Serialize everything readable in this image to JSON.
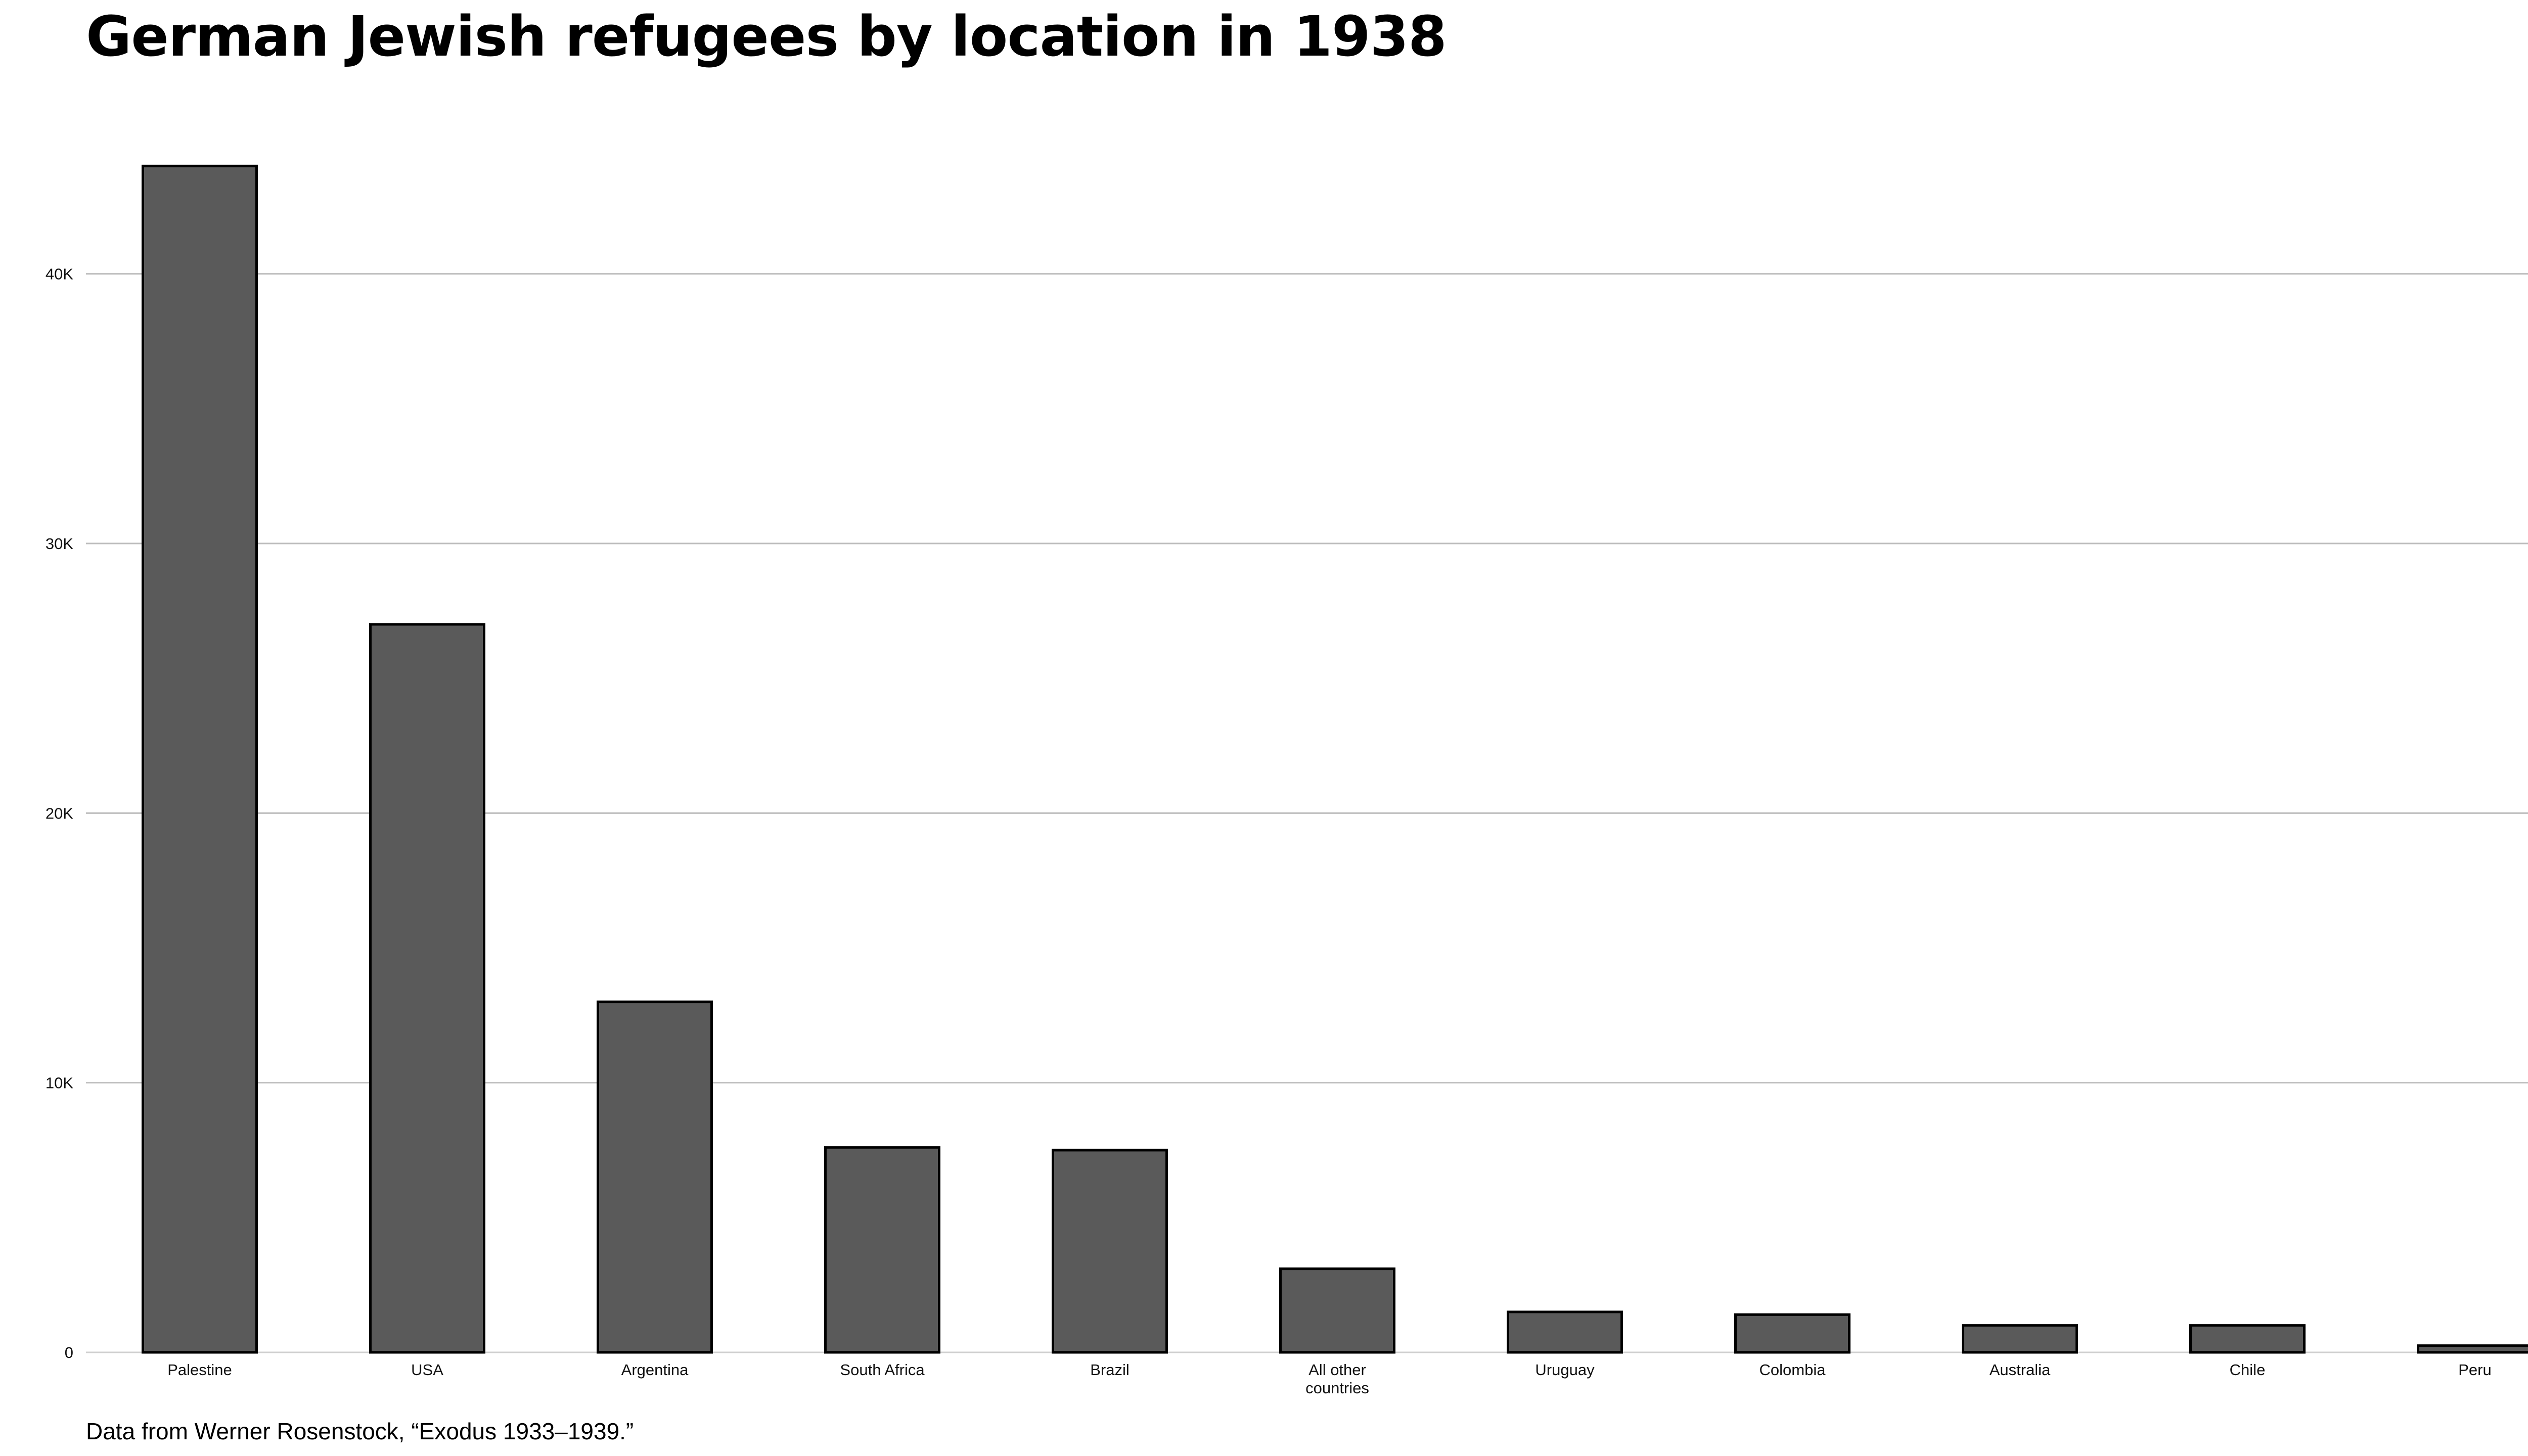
{
  "chart_data": {
    "type": "bar",
    "title": "German Jewish refugees by location in 1938",
    "xlabel": "",
    "ylabel": "",
    "categories": [
      "Palestine",
      "USA",
      "Argentina",
      "South Africa",
      "Brazil",
      "All other countries",
      "Uruguay",
      "Colombia",
      "Australia",
      "Chile",
      "Peru"
    ],
    "values": [
      44000,
      27000,
      13000,
      7600,
      7500,
      3100,
      1500,
      1400,
      1000,
      1000,
      250
    ],
    "ylim": [
      0,
      46500
    ],
    "yticks": [
      0,
      10000,
      20000,
      30000,
      40000
    ],
    "ytick_labels": [
      "0",
      "10K",
      "20K",
      "30K",
      "40K"
    ],
    "grid": "horizontal",
    "legend": "none",
    "bar_color": "#5a5a5a",
    "source_note": "Data from Werner Rosenstock, “Exodus 1933–1939.”"
  }
}
